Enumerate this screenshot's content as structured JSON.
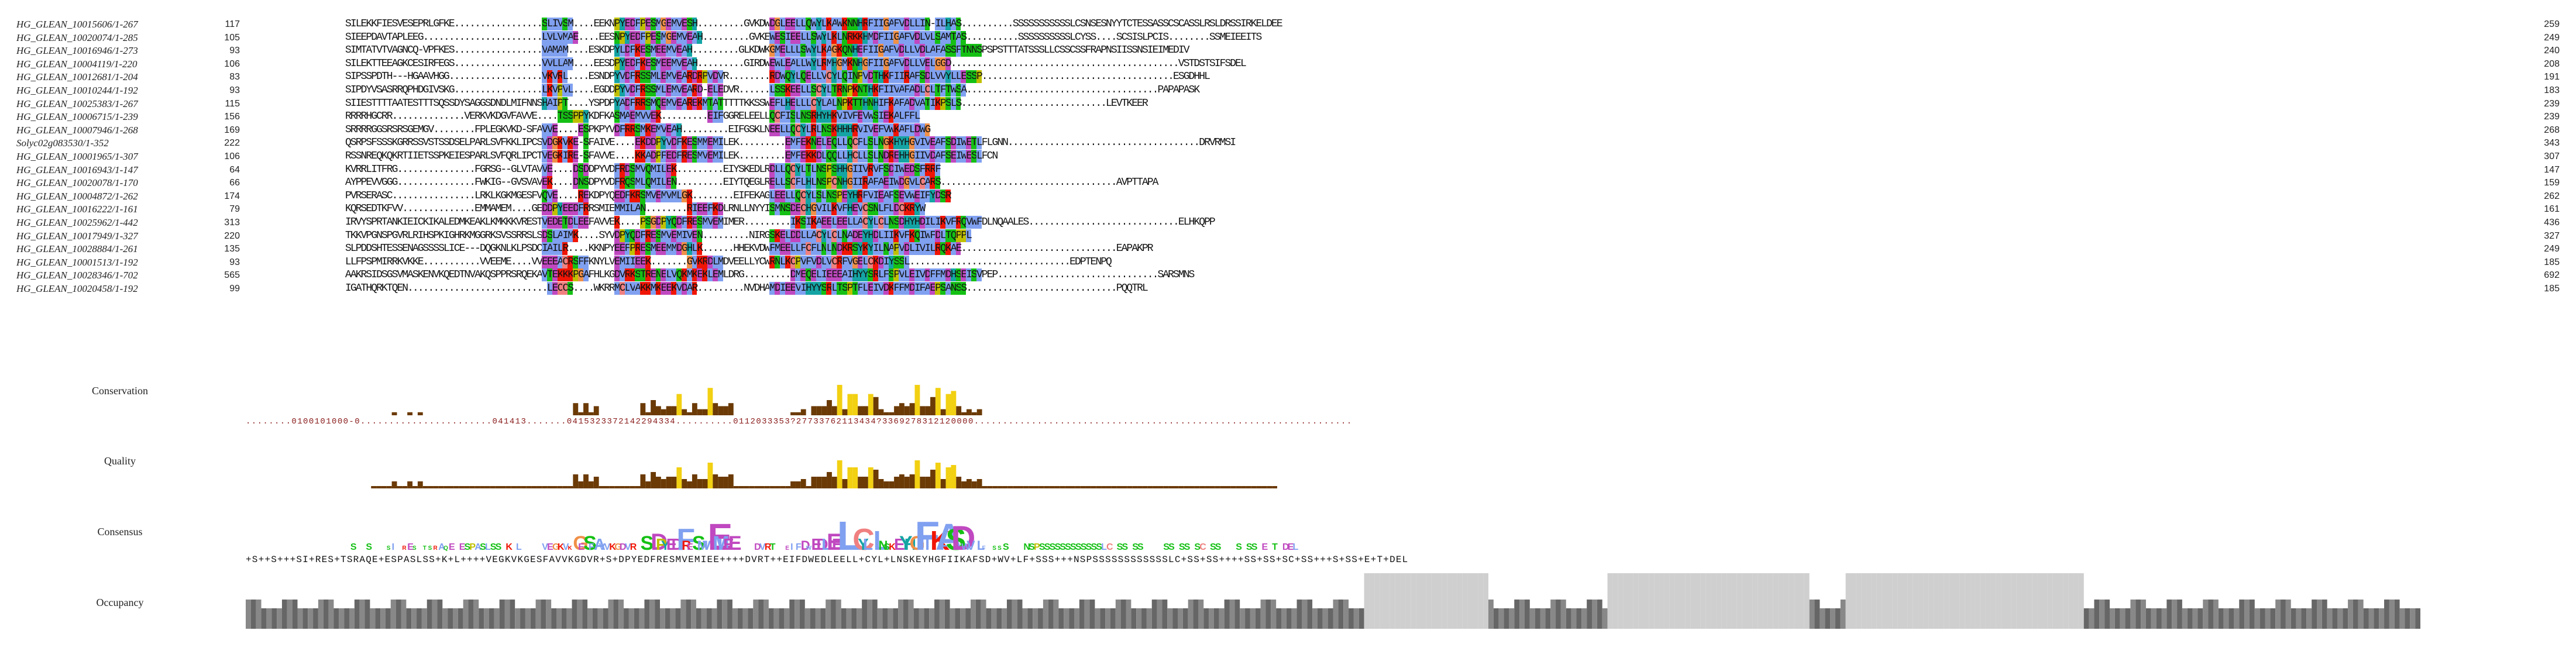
{
  "alignment": {
    "sequences": [
      {
        "name": "HG_GLEAN_10015606/1-267",
        "start": "117",
        "end": "259",
        "seq": "SILEKKFIESVESEPRLGFKE.................SLIVSM....EEKNPYEDFPESMGEMVESH.........GVKDWDGLEELLQWYLKAWKNNHRFIIGAFVDLLIN-ILHAS..........SSSSSSSSSSSLCSNSESNYYTCTESSASSCSCASSLRSLDRSSIRKELDEE"
      },
      {
        "name": "HG_GLEAN_10020074/1-285",
        "start": "105",
        "end": "249",
        "seq": "SIEEPDAVTAPLEEG.......................LVLVMAE....EESNPYEDFPESMGEMVEAH.........GVKEWESIEELLSWYLKLNRKKHMDFIIGAFVDLVLSAMTAS..........SSSSSSSSSSLCYSS....SCSISLPCIS........SSMEIEEITS"
      },
      {
        "name": "HG_GLEAN_10016946/1-273",
        "start": "93",
        "end": "240",
        "seq": "SIMTATVTVAGNCQ-VPFKES.................VAMAM....ESKDPYLDFKESMEEMVEAH.........GLKDWKGMELLLSWYLKAGKQNHEFIIGAFVDLLVDLAFASSFTNNSPSPSTTTATSSSLLCSSCSSFRAPNSIISSNSIEIMEDIV"
      },
      {
        "name": "HG_GLEAN_10004119/1-220",
        "start": "106",
        "end": "208",
        "seq": "SILEKTTEEAGKCESIRFEGS.................VVLLAM....EESDPYEDFKESMEEMVEAH.........GIRDWEWLEALLWYLRMHGMKNHGFIIGAFVDLLVELGGD............................................VSTDSTSIFSDEL"
      },
      {
        "name": "HG_GLEAN_10012681/1-204",
        "start": "83",
        "end": "191",
        "seq": "SIPSSPDTH---HGAAVHGG..................VKVRL....ESNDPYVDFRSSMLEMVEARDRPVDVR........RDWQYLQELLVCYLQINPVDTHKFIIRAFSDLVVYLLESSP.....................................ESGDHHL"
      },
      {
        "name": "HG_GLEAN_10010244/1-192",
        "start": "93",
        "end": "183",
        "seq": "SIPDYVSASRRQPHDGIVSKG.................LKVPVL....EGDDPYVDFRSSMLEMVEARD-ELEDVR......LSSKEELLSCYLTRNPKNTHKFIIVAFADLCLTFTWSA.....................................PAPAPASK"
      },
      {
        "name": "HG_GLEAN_10025383/1-267",
        "start": "115",
        "end": "239",
        "seq": "SIIESTTTTAATESTTTSQSSDYSAGGSDNDLMIFNNSHAIPT....YSPDPYADFRRSMQEMVEAREKMTATTTTTKKSSWEFLHELLLCYLALNPKTTHNHIFKAFADVATIKPSLS............................LEVTKEER"
      },
      {
        "name": "HG_GLEAN_10006715/1-239",
        "start": "156",
        "end": "239",
        "seq": "RRRRHGCRR..............VERKVKDGVFAVVE....TSSPPYKDFKASMAEMVVEK.........EIFGGRELEELLQCFISLNSRHYHKVIVFEVWSIEKALFFL"
      },
      {
        "name": "HG_GLEAN_10007946/1-268",
        "start": "169",
        "end": "268",
        "seq": "SRRRRGGSRSRSGEMGV........FPLEGKVKD-SFAVVE....ESPKPYVDFRRSMKEMVEAH.........EIFGSKLNEELLQCYLRLNSKHHHRVIVEFVWKAFLDWG"
      },
      {
        "name": "Solyc02g083530/1-352",
        "start": "222",
        "end": "343",
        "seq": "QSRPSFSSSKGRRSSVSTSSDSELPARLSVFKKLIPCSVDGKVKE-SFAIVE....EKDDPYVDFKESMMEMILEK.........EMFEKNELEQLLQCFLSLNGKHYHGVIVEAFSDIWETLFLGNN.....................................DRVRMSI"
      },
      {
        "name": "HG_GLEAN_10001965/1-307",
        "start": "106",
        "end": "307",
        "seq": "RSSNREQKQKRTIIETSSPKEIESPARLSVFQRLIPCTVEGKIRE-SFAVVE....KKADPFEDFRESMVEMILEK.........EMFEKKDLQQLLHCLLSLNDREHHGIIVDAFSEIWESLFCN"
      },
      {
        "name": "HG_GLEAN_10016943/1-147",
        "start": "64",
        "end": "147",
        "seq": "KVRRLITFRG...............FGRSG--GLVTAVVE....DSDDPYVDFRDSMVQMILEK.........EIYSKEDLRDLLQCYLTLNSPSHHGIIVRVFSDIWEDSFRRF"
      },
      {
        "name": "HG_GLEAN_10020078/1-170",
        "start": "66",
        "end": "159",
        "seq": "AYPPEVVGGG...............FWKIG--GVSVAVEK....DNSDPYVDFRQSMLQMILEN.........EIYTQEGLRELLSCFLHLNSPCNHGIIRAFAEIWDGVLCARS..................................AVPTTAPA"
      },
      {
        "name": "HG_GLEAN_10004872/1-262",
        "start": "174",
        "end": "262",
        "seq": "PVRSERASC................LRKLKGKMGESFVQVE....REKDPYQEDFKRSMVEMVMLGK........EIFEKAGLEELLQCYLSLNSPEYHRFVIEAFSEVWEIFYDSR"
      },
      {
        "name": "HG_GLEAN_10016222/1-161",
        "start": "79",
        "end": "161",
        "seq": "KQRSEDTKFVV..............EMMAMEM....GEDDPYEEDFRRSMIEMMILAN........RIEEFKDLRNLLNYYISMNSDECHGVILKVFHEVCSNLFLDCKRYW"
      },
      {
        "name": "HG_GLEAN_10025962/1-442",
        "start": "313",
        "end": "436",
        "seq": "IRVYSPRTANKIEICKIKALEDMKEAKLKMKKKVRESTVEDETDLEEFAVVEK....PSGDPYQDFRESMVEMIMER.........IKSIKAEELEELLACYLCLNSDHYHDILIKVFRQVWFDLNQAALES.............................ELHKQPP"
      },
      {
        "name": "HG_GLEAN_10017949/1-327",
        "start": "220",
        "end": "327",
        "seq": "TKKVPGNSPGVRLRIHSPKIGHRKMGGRKSVSSRRSLSDSLAIMK....SYVDPYQDFRESMVEMIVEN.........NIRGSKELDDLLACYLCLNADEYHDLIIKVFKQIWFDLTQPPL"
      },
      {
        "name": "HG_GLEAN_10028884/1-261",
        "start": "135",
        "end": "249",
        "seq": "SLPDDSHTESSENAGSSSSLICE---DQGKNLKLPSDCIAILR....KKNPYEEFPRESMEEMMDGHLK......HHEKVDWFMEELLFCFLNLNDKRSYKYILNAPVDLIVILRQKAE..............................EAPAKPR"
      },
      {
        "name": "HG_GLEAN_10001513/1-192",
        "start": "93",
        "end": "185",
        "seq": "LLFPSPMIRRKVKKE...........VVEEME....VVEEEACRSFFKNYLVEMIIEEK.......GVKRDLMDVEELLYCWRNLKCPVFVDLVCRFVGELCKDIYSSL...............................EDPTENPQ"
      },
      {
        "name": "HG_GLEAN_10028346/1-702",
        "start": "565",
        "end": "692",
        "seq": "AAKRSIDSGSVMASKENVKQEDTNVAKQSPPRSRQEKAVTEKKKPGAFHLKGDVRKSTRENELVQKMKEKLEMLDRG.........DMEQELIEEEAIHYYSRLFSPVLEIVDFFMDHSEISVPEP...............................SARSMNS"
      },
      {
        "name": "HG_GLEAN_10020458/1-192",
        "start": "99",
        "end": "185",
        "seq": "IGATHQRKTQEN...........................LECCS....WKRRMCLVAKKMKEEKVDAR.........NVDHAMDIEEVIHYYSRLTSPTFLEIVDKFFMDIFAEPSANSS.............................PQQTRL"
      }
    ],
    "consensus_sequence": "+S++S+++SI+RES+TSRAQE+ESPASLSS+K+L++++VEGKVKGESFAVVKGDVR+S+DPYEDFRESMVEMIEE++++DVRT++EIFDWEDLEELL+CYL+LNSKEYHGFIIKAFSD+WV+LF+SSS+++NSPSSSSSSSSSSSSLC+SS+SS++++SS+SS+SC+SS+++S+SS+E+T+DEL"
  },
  "annotations": {
    "conservation": {
      "label": "Conservation",
      "values": "........0100101000-0.......................041413.......0415323372142294334..........0112033353?27733762113434?3369278312120000.................................................................."
    },
    "quality": {
      "label": "Quality"
    },
    "consensus": {
      "label": "Consensus"
    },
    "occupancy": {
      "label": "Occupancy"
    }
  },
  "colors": {
    "hydrophobic": "#80a0f0",
    "positive": "#f01505",
    "negative": "#c048c0",
    "polar": "#15c015",
    "cysteine": "#f08080",
    "glycine": "#f09048",
    "proline": "#c0c000",
    "aromatic": "#15a4a4",
    "conservation_bar": "#6b3a05",
    "conservation_high": "#f2d012",
    "occupancy_bar": "#555555"
  }
}
